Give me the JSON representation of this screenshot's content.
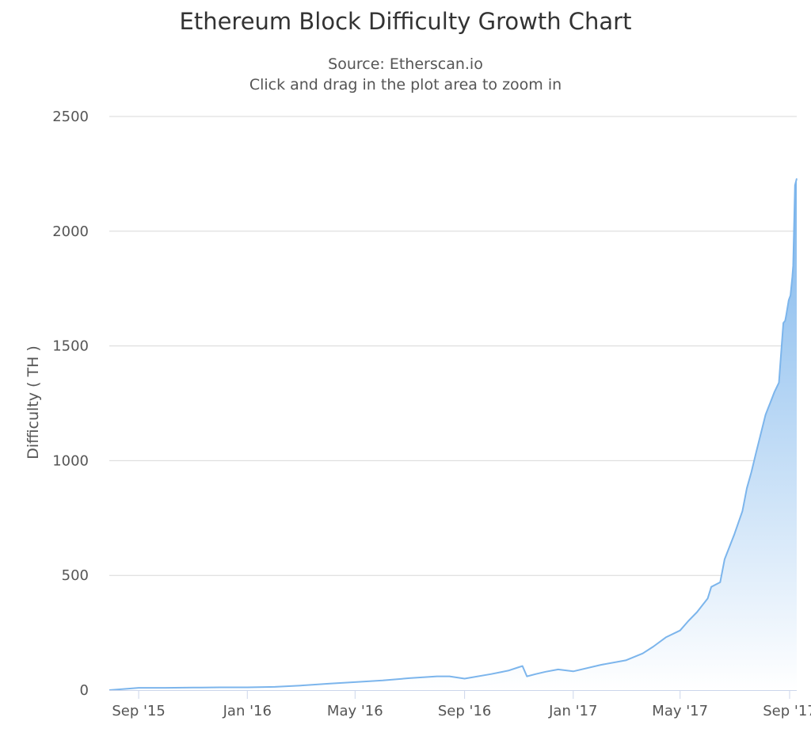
{
  "chart_data": {
    "type": "area",
    "title": "Ethereum Block Difficulty Growth Chart",
    "subtitles": [
      "Source: Etherscan.io",
      "Click and drag in the plot area to zoom in"
    ],
    "xlabel": "",
    "ylabel": "Difficulty ( TH )",
    "x_tick_labels": [
      "Sep '15",
      "Jan '16",
      "May '16",
      "Sep '16",
      "Jan '17",
      "May '17",
      "Sep '17"
    ],
    "x_tick_dates": [
      "2015-09-01",
      "2016-01-01",
      "2016-05-01",
      "2016-09-01",
      "2017-01-01",
      "2017-05-01",
      "2017-09-01"
    ],
    "xlim": [
      "2015-07-30",
      "2017-09-09"
    ],
    "ylim": [
      0,
      2500
    ],
    "y_ticks": [
      0,
      500,
      1000,
      1500,
      2000,
      2500
    ],
    "grid": "horizontal",
    "legend": "none",
    "colors": {
      "line": "#7cb5ec",
      "fill_top": "#7cb5ec",
      "fill_bottom": "#ffffff",
      "grid": "#d8d8d8",
      "axis": "#ccd6eb",
      "text": "#333333",
      "tick_text": "#555555"
    },
    "series": [
      {
        "x": [
          "2015-07-30",
          "2015-08-15",
          "2015-09-01",
          "2015-10-01",
          "2015-11-01",
          "2015-12-01",
          "2016-01-01",
          "2016-02-01",
          "2016-03-01",
          "2016-04-01",
          "2016-05-01",
          "2016-06-01",
          "2016-07-01",
          "2016-08-01",
          "2016-08-15",
          "2016-09-01",
          "2016-10-01",
          "2016-10-20",
          "2016-11-01",
          "2016-11-05",
          "2016-11-10",
          "2016-11-20",
          "2016-12-01",
          "2016-12-15",
          "2017-01-01",
          "2017-02-01",
          "2017-03-01",
          "2017-03-20",
          "2017-04-01",
          "2017-04-15",
          "2017-05-01",
          "2017-05-10",
          "2017-05-20",
          "2017-06-01",
          "2017-06-05",
          "2017-06-15",
          "2017-06-20",
          "2017-07-01",
          "2017-07-10",
          "2017-07-15",
          "2017-07-20",
          "2017-07-25",
          "2017-08-05",
          "2017-08-08",
          "2017-08-10",
          "2017-08-15",
          "2017-08-20",
          "2017-08-25",
          "2017-08-27",
          "2017-08-28",
          "2017-08-31",
          "2017-09-02",
          "2017-09-04",
          "2017-09-05",
          "2017-09-07",
          "2017-09-09"
        ],
        "values": [
          0,
          5,
          10,
          10,
          11,
          12,
          12,
          14,
          20,
          28,
          35,
          42,
          52,
          60,
          60,
          50,
          70,
          85,
          100,
          105,
          60,
          70,
          80,
          90,
          82,
          110,
          130,
          160,
          190,
          230,
          260,
          300,
          340,
          400,
          450,
          470,
          570,
          680,
          780,
          880,
          950,
          1030,
          1200,
          1230,
          1250,
          1300,
          1340,
          1600,
          1610,
          1630,
          1700,
          1720,
          1800,
          1850,
          2200,
          2230
        ]
      }
    ]
  }
}
